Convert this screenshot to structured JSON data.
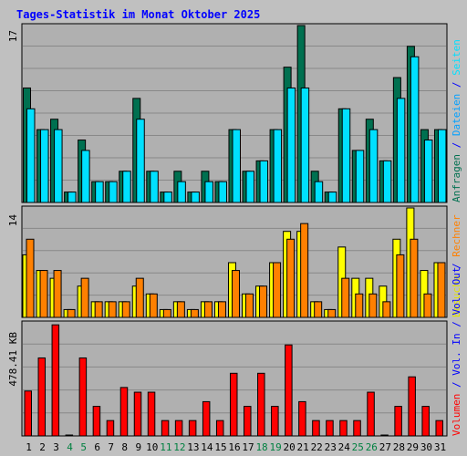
{
  "title": "Tages-Statistik im Monat Oktober 2025",
  "colors": {
    "background": "#c0c0c0",
    "panel": "#b0b0b0",
    "grid": "#888888",
    "title": "#0000ff",
    "anfragen": "#007050",
    "dateien": "#00e0ff",
    "seiten": "#00e0ff",
    "besuche": "#ffff00",
    "rechner": "#ff8000",
    "volumen": "#ff0000",
    "weekday_label": "#000000",
    "weekend_label": "#008040"
  },
  "chart_data": [
    {
      "type": "bar",
      "panel": "top",
      "ymax_label": "17",
      "ylim": [
        0,
        17
      ],
      "right_labels": [
        "Anfragen",
        "Dateien",
        "Seiten"
      ],
      "categories": [
        "1",
        "2",
        "3",
        "4",
        "5",
        "6",
        "7",
        "8",
        "9",
        "10",
        "11",
        "12",
        "13",
        "14",
        "15",
        "16",
        "17",
        "18",
        "19",
        "20",
        "21",
        "22",
        "23",
        "24",
        "25",
        "26",
        "27",
        "28",
        "29",
        "30",
        "31"
      ],
      "series": [
        {
          "name": "Anfragen",
          "values": [
            11,
            7,
            8,
            1,
            6,
            2,
            2,
            3,
            10,
            3,
            1,
            3,
            1,
            3,
            2,
            7,
            3,
            4,
            7,
            13,
            17,
            3,
            1,
            9,
            5,
            8,
            4,
            12,
            15,
            7,
            7
          ]
        },
        {
          "name": "Dateien",
          "values": [
            9,
            7,
            7,
            1,
            5,
            2,
            2,
            3,
            8,
            3,
            1,
            2,
            1,
            2,
            2,
            7,
            3,
            4,
            7,
            11,
            11,
            2,
            1,
            9,
            5,
            7,
            4,
            10,
            14,
            6,
            7
          ]
        },
        {
          "name": "Seiten",
          "values": [
            0,
            0,
            0,
            0,
            0,
            0,
            0,
            0,
            0,
            0,
            0,
            0,
            0,
            0,
            0,
            0,
            0,
            0,
            0,
            0,
            0,
            0,
            0,
            0,
            0,
            0,
            0,
            0,
            0,
            0,
            0
          ]
        }
      ]
    },
    {
      "type": "bar",
      "panel": "middle",
      "ymax_label": "14",
      "ylim": [
        0,
        14
      ],
      "right_labels": [
        "Besuche",
        "Rechner"
      ],
      "categories": [
        "1",
        "2",
        "3",
        "4",
        "5",
        "6",
        "7",
        "8",
        "9",
        "10",
        "11",
        "12",
        "13",
        "14",
        "15",
        "16",
        "17",
        "18",
        "19",
        "20",
        "21",
        "22",
        "23",
        "24",
        "25",
        "26",
        "27",
        "28",
        "29",
        "30",
        "31"
      ],
      "series": [
        {
          "name": "Besuche",
          "values": [
            8,
            6,
            5,
            1,
            4,
            2,
            2,
            2,
            4,
            3,
            1,
            2,
            1,
            2,
            2,
            7,
            3,
            4,
            7,
            11,
            11,
            2,
            1,
            9,
            5,
            5,
            4,
            10,
            14,
            6,
            7
          ]
        },
        {
          "name": "Rechner",
          "values": [
            10,
            6,
            6,
            1,
            5,
            2,
            2,
            2,
            5,
            3,
            1,
            2,
            1,
            2,
            2,
            6,
            3,
            4,
            7,
            10,
            12,
            2,
            1,
            5,
            3,
            3,
            2,
            8,
            10,
            3,
            7
          ]
        }
      ]
    },
    {
      "type": "bar",
      "panel": "bottom",
      "ymax_label": "478.41 KB",
      "ylim": [
        0,
        478.41
      ],
      "right_labels": [
        "Volumen",
        "Vol. In",
        "Vol. Out"
      ],
      "categories": [
        "1",
        "2",
        "3",
        "4",
        "5",
        "6",
        "7",
        "8",
        "9",
        "10",
        "11",
        "12",
        "13",
        "14",
        "15",
        "16",
        "17",
        "18",
        "19",
        "20",
        "21",
        "22",
        "23",
        "24",
        "25",
        "26",
        "27",
        "28",
        "29",
        "30",
        "31"
      ],
      "series": [
        {
          "name": "Volumen",
          "values": [
            190,
            330,
            470,
            0,
            330,
            125,
            65,
            205,
            185,
            185,
            65,
            65,
            65,
            145,
            65,
            265,
            125,
            265,
            125,
            385,
            145,
            65,
            65,
            65,
            65,
            185,
            0,
            125,
            250,
            125,
            65
          ]
        }
      ]
    }
  ],
  "x_labels": [
    {
      "text": "1",
      "weekend": false
    },
    {
      "text": "2",
      "weekend": false
    },
    {
      "text": "3",
      "weekend": false
    },
    {
      "text": "4",
      "weekend": true
    },
    {
      "text": "5",
      "weekend": true
    },
    {
      "text": "6",
      "weekend": false
    },
    {
      "text": "7",
      "weekend": false
    },
    {
      "text": "8",
      "weekend": false
    },
    {
      "text": "9",
      "weekend": false
    },
    {
      "text": "10",
      "weekend": false
    },
    {
      "text": "11",
      "weekend": true
    },
    {
      "text": "12",
      "weekend": true
    },
    {
      "text": "13",
      "weekend": false
    },
    {
      "text": "14",
      "weekend": false
    },
    {
      "text": "15",
      "weekend": false
    },
    {
      "text": "16",
      "weekend": false
    },
    {
      "text": "17",
      "weekend": false
    },
    {
      "text": "18",
      "weekend": true
    },
    {
      "text": "19",
      "weekend": true
    },
    {
      "text": "20",
      "weekend": false
    },
    {
      "text": "21",
      "weekend": false
    },
    {
      "text": "22",
      "weekend": false
    },
    {
      "text": "23",
      "weekend": false
    },
    {
      "text": "24",
      "weekend": false
    },
    {
      "text": "25",
      "weekend": true
    },
    {
      "text": "26",
      "weekend": true
    },
    {
      "text": "27",
      "weekend": false
    },
    {
      "text": "28",
      "weekend": false
    },
    {
      "text": "29",
      "weekend": false
    },
    {
      "text": "30",
      "weekend": false
    },
    {
      "text": "31",
      "weekend": false
    }
  ],
  "right_axis_text": {
    "top": [
      {
        "text": "Anfragen",
        "color": "#007050"
      },
      {
        "text": " / ",
        "color": "#0000ff"
      },
      {
        "text": "Dateien",
        "color": "#00a0ff"
      },
      {
        "text": " / ",
        "color": "#0000ff"
      },
      {
        "text": "Seiten",
        "color": "#00e0ff"
      }
    ],
    "middle": [
      {
        "text": "Besuche",
        "color": "#e0e000"
      },
      {
        "text": " / ",
        "color": "#0000ff"
      },
      {
        "text": "Rechner",
        "color": "#ff8000"
      }
    ],
    "bottom": [
      {
        "text": "Volumen",
        "color": "#ff0000"
      },
      {
        "text": " / ",
        "color": "#0000ff"
      },
      {
        "text": "Vol. In",
        "color": "#0000ff"
      },
      {
        "text": " / ",
        "color": "#0000ff"
      },
      {
        "text": "Vol. Out",
        "color": "#0000ff"
      }
    ]
  }
}
